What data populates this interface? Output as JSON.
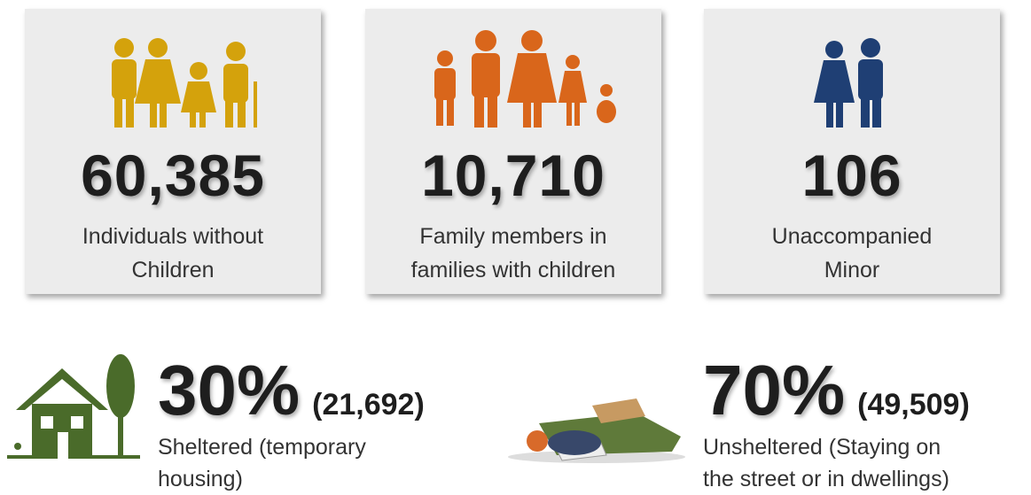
{
  "cards": [
    {
      "number": "60,385",
      "label_lines": [
        "Individuals without",
        "Children"
      ]
    },
    {
      "number": "10,710",
      "label_lines": [
        "Family members in",
        "families with children"
      ]
    },
    {
      "number": "106",
      "label_lines": [
        "Unaccompanied",
        "Minor"
      ]
    }
  ],
  "stats": [
    {
      "percent": "30%",
      "count": "(21,692)",
      "label_lines": [
        "Sheltered (temporary",
        "housing)"
      ]
    },
    {
      "percent": "70%",
      "count": "(49,509)",
      "label_lines": [
        "Unsheltered (Staying on",
        "the street or in dwellings)"
      ]
    }
  ]
}
